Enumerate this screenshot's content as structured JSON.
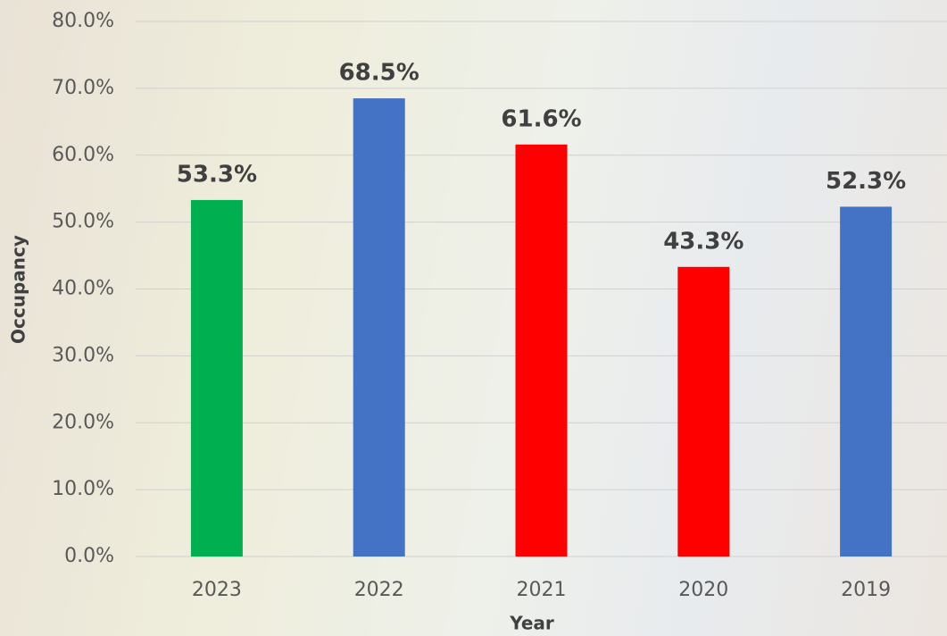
{
  "chart_data": {
    "type": "bar",
    "categories": [
      "2023",
      "2022",
      "2021",
      "2020",
      "2019"
    ],
    "values": [
      53.3,
      68.5,
      61.6,
      43.3,
      52.3
    ],
    "value_labels": [
      "53.3%",
      "68.5%",
      "61.6%",
      "43.3%",
      "52.3%"
    ],
    "colors": [
      "#00b050",
      "#4472c4",
      "#ff0000",
      "#ff0000",
      "#4472c4"
    ],
    "x_label": "Year",
    "y_label": "Occupancy",
    "ylim": [
      0,
      80
    ],
    "yticks": [
      {
        "value": 0,
        "label": "0.0%"
      },
      {
        "value": 10,
        "label": "10.0%"
      },
      {
        "value": 20,
        "label": "20.0%"
      },
      {
        "value": 30,
        "label": "30.0%"
      },
      {
        "value": 40,
        "label": "40.0%"
      },
      {
        "value": 50,
        "label": "50.0%"
      },
      {
        "value": 60,
        "label": "60.0%"
      },
      {
        "value": 70,
        "label": "70.0%"
      },
      {
        "value": 80,
        "label": "80.0%"
      }
    ],
    "grid": true
  }
}
